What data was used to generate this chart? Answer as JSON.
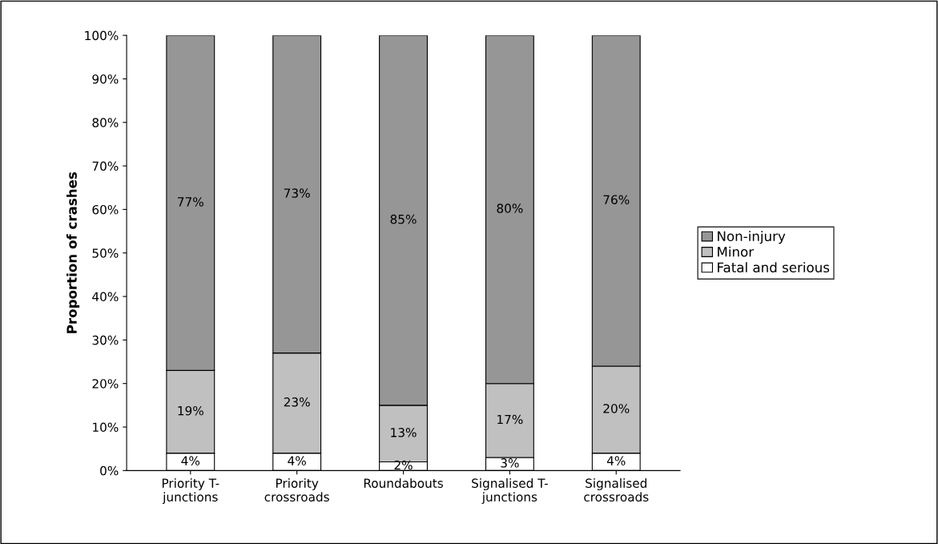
{
  "chart_data": {
    "type": "bar",
    "stacked": true,
    "ylabel": "Proportion of crashes",
    "categories": [
      "Priority T-\njunctions",
      "Priority\ncrossroads",
      "Roundabouts",
      "Signalised T-\njunctions",
      "Signalised\ncrossroads"
    ],
    "series": [
      {
        "name": "Fatal and serious",
        "color": "#ffffff",
        "values": [
          4,
          4,
          2,
          3,
          4
        ],
        "value_labels": [
          "4%",
          "4%",
          "2%",
          "3%",
          "4%"
        ]
      },
      {
        "name": "Minor",
        "color": "#c0c0c0",
        "values": [
          19,
          23,
          13,
          17,
          20
        ],
        "value_labels": [
          "19%",
          "23%",
          "13%",
          "17%",
          "20%"
        ]
      },
      {
        "name": "Non-injury",
        "color": "#969696",
        "values": [
          77,
          73,
          85,
          80,
          76
        ],
        "value_labels": [
          "77%",
          "73%",
          "85%",
          "80%",
          "76%"
        ]
      }
    ],
    "ylim": [
      0,
      100
    ],
    "yticks": [
      {
        "value": 0,
        "label": "0%"
      },
      {
        "value": 10,
        "label": "10%"
      },
      {
        "value": 20,
        "label": "20%"
      },
      {
        "value": 30,
        "label": "30%"
      },
      {
        "value": 40,
        "label": "40%"
      },
      {
        "value": 50,
        "label": "50%"
      },
      {
        "value": 60,
        "label": "60%"
      },
      {
        "value": 70,
        "label": "70%"
      },
      {
        "value": 80,
        "label": "80%"
      },
      {
        "value": 90,
        "label": "90%"
      },
      {
        "value": 100,
        "label": "100%"
      }
    ],
    "grid": false,
    "legend": "right"
  }
}
